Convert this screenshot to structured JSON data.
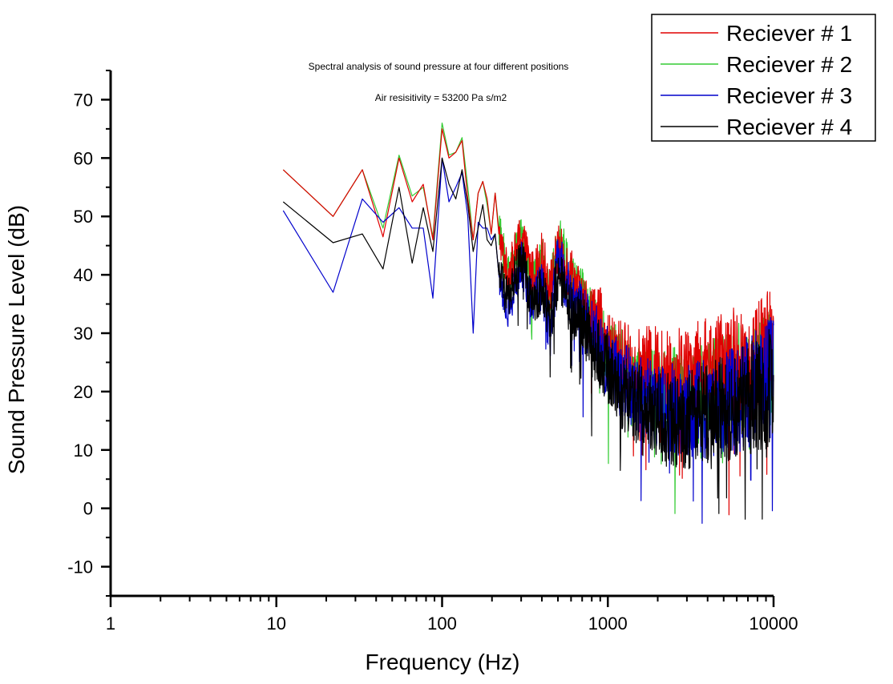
{
  "chart_data": {
    "type": "line",
    "title": "Spectral analysis of sound pressure at four different positions",
    "subtitle": "Air resisitivity = 53200 Pa s/m2",
    "xlabel": "Frequency (Hz)",
    "ylabel": "Sound Pressure Level (dB)",
    "x_scale": "log",
    "xlim": [
      1,
      10000
    ],
    "ylim": [
      -15,
      75
    ],
    "x_ticks": [
      1,
      10,
      100,
      1000,
      10000
    ],
    "x_tick_labels": [
      "1",
      "10",
      "100",
      "1000",
      "10000"
    ],
    "y_ticks": [
      -10,
      0,
      10,
      20,
      30,
      40,
      50,
      60,
      70
    ],
    "y_tick_labels": [
      "-10",
      "0",
      "10",
      "20",
      "30",
      "40",
      "50",
      "60",
      "70"
    ],
    "grid": false,
    "legend_position": "top-right",
    "series": [
      {
        "name": "Reciever # 1",
        "color": "#e00000",
        "x": [
          11,
          22,
          33,
          44,
          55,
          66,
          77,
          88,
          100,
          110,
          121,
          132,
          143,
          154,
          165,
          176,
          187,
          198,
          209,
          220,
          250,
          300,
          350,
          400,
          450,
          500,
          600,
          700,
          800,
          900,
          1000,
          1200,
          1500,
          2000,
          2500,
          3000,
          4000,
          5000,
          6000,
          7000,
          8000,
          9000,
          10000
        ],
        "y": [
          58,
          50,
          58,
          46.5,
          60,
          52.5,
          55.5,
          46,
          65,
          60,
          61,
          63,
          53,
          46,
          54,
          56,
          53,
          47,
          54,
          47,
          40,
          47,
          40,
          43,
          38,
          44,
          40,
          35,
          33,
          32,
          27,
          26,
          24,
          24,
          23,
          23,
          24,
          24,
          25,
          25,
          26,
          27,
          27
        ]
      },
      {
        "name": "Reciever # 2",
        "color": "#33cc33",
        "x": [
          11,
          22,
          33,
          44,
          55,
          66,
          77,
          88,
          100,
          110,
          121,
          132,
          143,
          154,
          165,
          176,
          187,
          198,
          209,
          220,
          250,
          300,
          350,
          400,
          450,
          500,
          600,
          700,
          800,
          900,
          1000,
          1200,
          1500,
          2000,
          2500,
          3000,
          4000,
          5000,
          6000,
          7000,
          8000,
          9000,
          10000
        ],
        "y": [
          58,
          50,
          58,
          48,
          60.5,
          53.5,
          55,
          46.5,
          66,
          60.5,
          61,
          63.5,
          55,
          46,
          54,
          56,
          52,
          47,
          54,
          48,
          40,
          46,
          38,
          42,
          36,
          48,
          38,
          36,
          32,
          30,
          26,
          25,
          22,
          20,
          20,
          19,
          20,
          21,
          22,
          22,
          23,
          24,
          25
        ]
      },
      {
        "name": "Reciever # 3",
        "color": "#0000cc",
        "x": [
          11,
          22,
          33,
          44,
          55,
          66,
          77,
          88,
          100,
          110,
          121,
          132,
          143,
          154,
          165,
          176,
          187,
          198,
          209,
          220,
          250,
          300,
          350,
          400,
          450,
          500,
          600,
          700,
          800,
          900,
          1000,
          1200,
          1500,
          2000,
          2500,
          3000,
          4000,
          5000,
          6000,
          7000,
          8000,
          9000,
          10000
        ],
        "y": [
          51,
          37,
          53,
          49,
          51.5,
          48,
          48,
          36,
          60,
          52.5,
          55,
          57.5,
          50,
          30,
          49,
          48,
          48,
          46,
          47,
          40,
          33,
          42,
          36,
          38,
          30,
          43,
          36,
          33,
          30,
          28,
          25,
          22,
          20,
          18,
          17,
          17,
          17,
          18,
          19,
          20,
          21,
          22,
          23
        ]
      },
      {
        "name": "Reciever # 4",
        "color": "#000000",
        "x": [
          11,
          22,
          33,
          44,
          55,
          66,
          77,
          88,
          100,
          110,
          121,
          132,
          143,
          154,
          165,
          176,
          187,
          198,
          209,
          220,
          250,
          300,
          350,
          400,
          450,
          500,
          600,
          700,
          800,
          900,
          1000,
          1200,
          1500,
          2000,
          2500,
          3000,
          4000,
          5000,
          6000,
          7000,
          8000,
          9000,
          10000
        ],
        "y": [
          52.5,
          45.5,
          47,
          41,
          55,
          42,
          51.5,
          44,
          60,
          55.5,
          53,
          58,
          52,
          44,
          48,
          52,
          46,
          45,
          47,
          40,
          36,
          43,
          35,
          38,
          32,
          40,
          34,
          32,
          28,
          26,
          24,
          20,
          18,
          16,
          15,
          15,
          16,
          17,
          18,
          19,
          19,
          20,
          21
        ]
      }
    ]
  }
}
